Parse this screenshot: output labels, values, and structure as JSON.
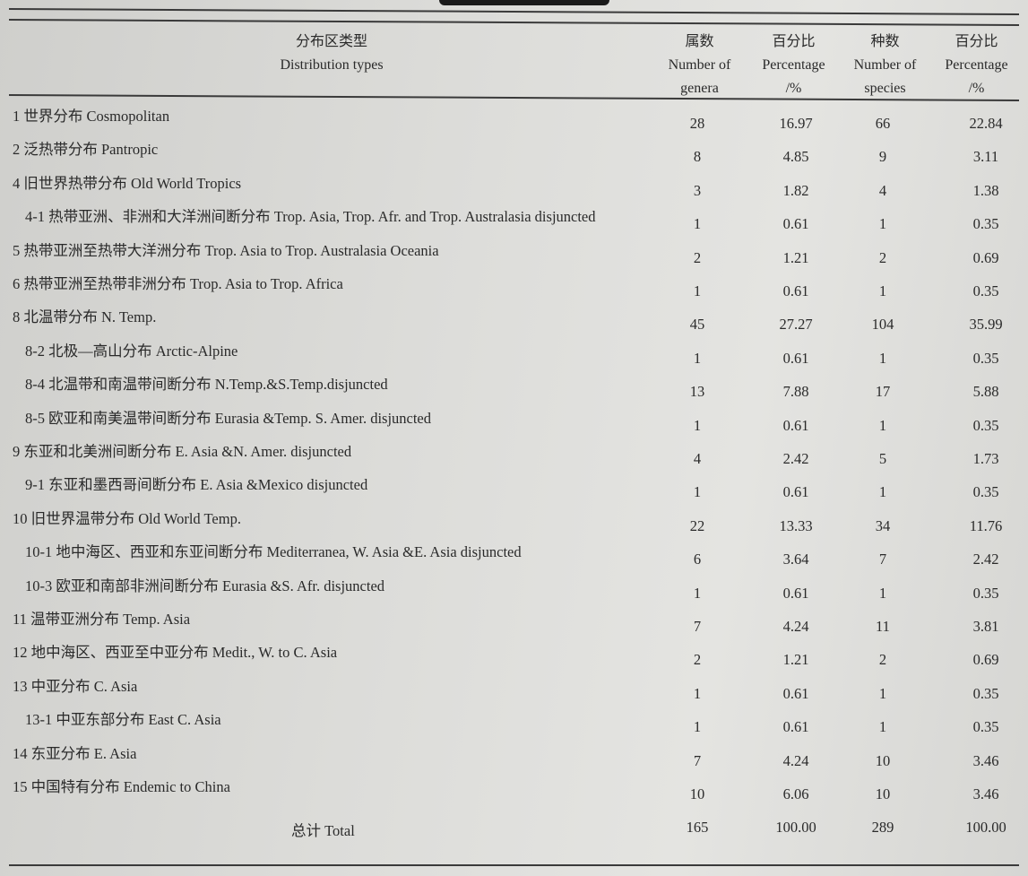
{
  "header": {
    "type_cn": "分布区类型",
    "type_en": "Distribution types",
    "genera_cn": "属数",
    "genera_en1": "Number of",
    "genera_en2": "genera",
    "pct1_cn": "百分比",
    "pct1_en1": "Percentage",
    "pct1_en2": "/%",
    "species_cn": "种数",
    "species_en1": "Number of",
    "species_en2": "species",
    "pct2_cn": "百分比",
    "pct2_en1": "Percentage",
    "pct2_en2": "/%"
  },
  "rows": [
    {
      "label": "1 世界分布 Cosmopolitan",
      "indent": false,
      "genera": "28",
      "pct_genera": "16.97",
      "species": "66",
      "pct_species": "22.84"
    },
    {
      "label": "2 泛热带分布 Pantropic",
      "indent": false,
      "genera": "8",
      "pct_genera": "4.85",
      "species": "9",
      "pct_species": "3.11"
    },
    {
      "label": "4 旧世界热带分布 Old World Tropics",
      "indent": false,
      "genera": "3",
      "pct_genera": "1.82",
      "species": "4",
      "pct_species": "1.38"
    },
    {
      "label": "4-1 热带亚洲、非洲和大洋洲间断分布 Trop. Asia, Trop. Afr. and Trop. Australasia disjuncted",
      "indent": true,
      "genera": "1",
      "pct_genera": "0.61",
      "species": "1",
      "pct_species": "0.35"
    },
    {
      "label": "5 热带亚洲至热带大洋洲分布 Trop. Asia to Trop. Australasia Oceania",
      "indent": false,
      "genera": "2",
      "pct_genera": "1.21",
      "species": "2",
      "pct_species": "0.69"
    },
    {
      "label": "6 热带亚洲至热带非洲分布 Trop. Asia to Trop. Africa",
      "indent": false,
      "genera": "1",
      "pct_genera": "0.61",
      "species": "1",
      "pct_species": "0.35"
    },
    {
      "label": "8 北温带分布 N. Temp.",
      "indent": false,
      "genera": "45",
      "pct_genera": "27.27",
      "species": "104",
      "pct_species": "35.99"
    },
    {
      "label": "8-2 北极—高山分布 Arctic-Alpine",
      "indent": true,
      "genera": "1",
      "pct_genera": "0.61",
      "species": "1",
      "pct_species": "0.35"
    },
    {
      "label": "8-4 北温带和南温带间断分布 N.Temp.&S.Temp.disjuncted",
      "indent": true,
      "genera": "13",
      "pct_genera": "7.88",
      "species": "17",
      "pct_species": "5.88"
    },
    {
      "label": "8-5 欧亚和南美温带间断分布 Eurasia &Temp. S. Amer. disjuncted",
      "indent": true,
      "genera": "1",
      "pct_genera": "0.61",
      "species": "1",
      "pct_species": "0.35"
    },
    {
      "label": "9 东亚和北美洲间断分布 E. Asia &N. Amer. disjuncted",
      "indent": false,
      "genera": "4",
      "pct_genera": "2.42",
      "species": "5",
      "pct_species": "1.73"
    },
    {
      "label": "9-1 东亚和墨西哥间断分布 E. Asia &Mexico disjuncted",
      "indent": true,
      "genera": "1",
      "pct_genera": "0.61",
      "species": "1",
      "pct_species": "0.35"
    },
    {
      "label": "10 旧世界温带分布 Old World Temp.",
      "indent": false,
      "genera": "22",
      "pct_genera": "13.33",
      "species": "34",
      "pct_species": "11.76"
    },
    {
      "label": "10-1 地中海区、西亚和东亚间断分布 Mediterranea, W. Asia &E. Asia disjuncted",
      "indent": true,
      "genera": "6",
      "pct_genera": "3.64",
      "species": "7",
      "pct_species": "2.42"
    },
    {
      "label": "10-3 欧亚和南部非洲间断分布 Eurasia &S. Afr. disjuncted",
      "indent": true,
      "genera": "1",
      "pct_genera": "0.61",
      "species": "1",
      "pct_species": "0.35"
    },
    {
      "label": "11 温带亚洲分布 Temp. Asia",
      "indent": false,
      "genera": "7",
      "pct_genera": "4.24",
      "species": "11",
      "pct_species": "3.81"
    },
    {
      "label": "12 地中海区、西亚至中亚分布 Medit., W. to C. Asia",
      "indent": false,
      "genera": "2",
      "pct_genera": "1.21",
      "species": "2",
      "pct_species": "0.69"
    },
    {
      "label": "13 中亚分布 C. Asia",
      "indent": false,
      "genera": "1",
      "pct_genera": "0.61",
      "species": "1",
      "pct_species": "0.35"
    },
    {
      "label": "13-1 中亚东部分布 East C. Asia",
      "indent": true,
      "genera": "1",
      "pct_genera": "0.61",
      "species": "1",
      "pct_species": "0.35"
    },
    {
      "label": "14 东亚分布 E. Asia",
      "indent": false,
      "genera": "7",
      "pct_genera": "4.24",
      "species": "10",
      "pct_species": "3.46"
    },
    {
      "label": "15 中国特有分布 Endemic to China",
      "indent": false,
      "genera": "10",
      "pct_genera": "6.06",
      "species": "10",
      "pct_species": "3.46"
    }
  ],
  "total": {
    "label": "总计 Total",
    "genera": "165",
    "pct_genera": "100.00",
    "species": "289",
    "pct_species": "100.00"
  }
}
